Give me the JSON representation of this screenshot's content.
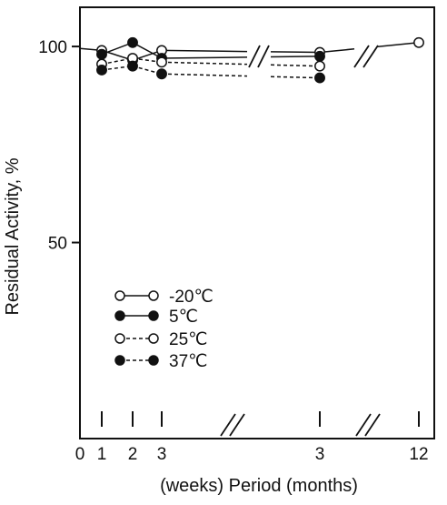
{
  "chart_data": {
    "type": "line",
    "title": "",
    "ylabel": "Residual Activity, %",
    "xlabel": "(weeks) Period (months)",
    "ylim": [
      0,
      110
    ],
    "y_ticks": [
      {
        "value": 50,
        "label": "50"
      },
      {
        "value": 100,
        "label": "100"
      }
    ],
    "x_categories": [
      "0",
      "1",
      "2",
      "3",
      "3",
      "12"
    ],
    "x_slot_index": {
      "0": 0,
      "1w": 1,
      "2w": 2,
      "3w": 3,
      "3m": 4,
      "12m": 5
    },
    "axis_breaks": [
      "between 3 weeks and 3 months",
      "between 3 months and 12 months"
    ],
    "legend_position": "lower-left",
    "series": [
      {
        "name": "-20℃",
        "marker": "open",
        "line": "solid",
        "points": [
          {
            "slot": 0,
            "y": 99.5
          },
          {
            "slot": 1,
            "y": 99
          },
          {
            "slot": 2,
            "y": 96.5
          },
          {
            "slot": 3,
            "y": 99
          },
          {
            "slot": 4,
            "y": 98.5
          },
          {
            "slot": 5,
            "y": 101
          }
        ]
      },
      {
        "name": "5℃",
        "marker": "filled",
        "line": "solid",
        "points": [
          {
            "slot": 1,
            "y": 98
          },
          {
            "slot": 2,
            "y": 101
          },
          {
            "slot": 3,
            "y": 97
          },
          {
            "slot": 4,
            "y": 97.5
          }
        ]
      },
      {
        "name": "25℃",
        "marker": "open",
        "line": "dashed",
        "points": [
          {
            "slot": 1,
            "y": 95.5
          },
          {
            "slot": 2,
            "y": 97
          },
          {
            "slot": 3,
            "y": 96
          },
          {
            "slot": 4,
            "y": 95
          }
        ]
      },
      {
        "name": "37℃",
        "marker": "filled",
        "line": "dashed",
        "points": [
          {
            "slot": 1,
            "y": 94
          },
          {
            "slot": 2,
            "y": 95
          },
          {
            "slot": 3,
            "y": 93
          },
          {
            "slot": 4,
            "y": 92
          }
        ]
      }
    ]
  }
}
